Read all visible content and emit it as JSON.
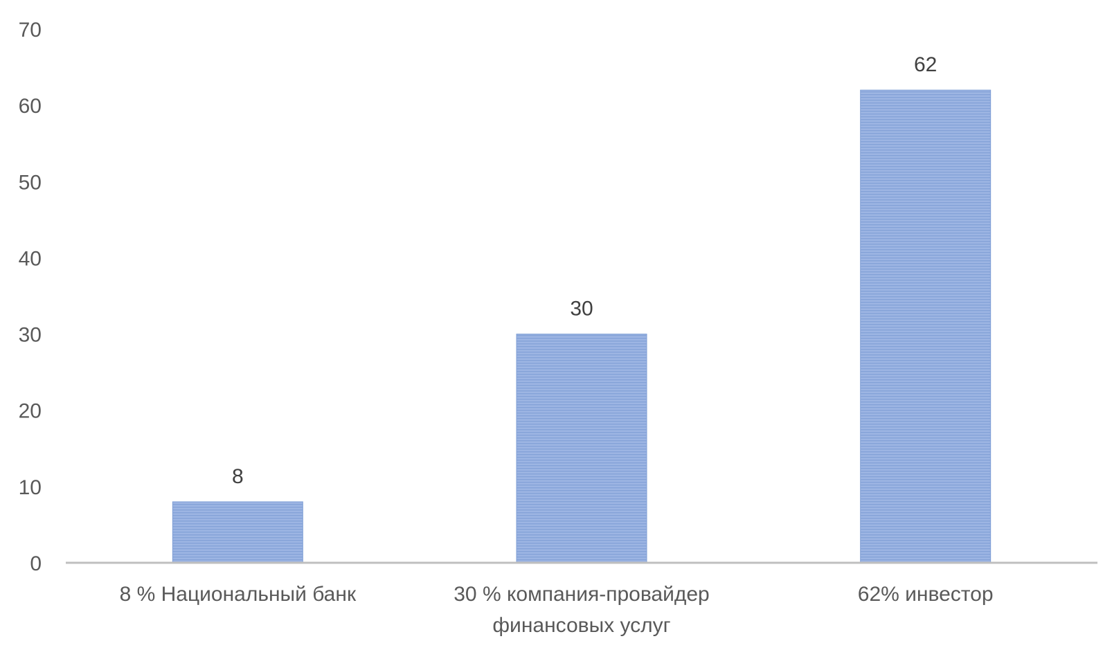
{
  "chart_data": {
    "type": "bar",
    "categories": [
      [
        "8 % Национальный банк"
      ],
      [
        "30 % компания-провайдер",
        "финансовых услуг"
      ],
      [
        "62% инвестор"
      ]
    ],
    "values": [
      8,
      30,
      62
    ],
    "data_labels": [
      "8",
      "30",
      "62"
    ],
    "ylim": [
      0,
      70
    ],
    "yticks": [
      "0",
      "10",
      "20",
      "30",
      "40",
      "50",
      "60",
      "70"
    ],
    "grid": false,
    "legend": "none",
    "colors": {
      "bar": "#8eaadb",
      "bar_light": "#a9c0e6",
      "bar_dark": "#7f9fd6",
      "axis": "#bfbfbf"
    }
  }
}
